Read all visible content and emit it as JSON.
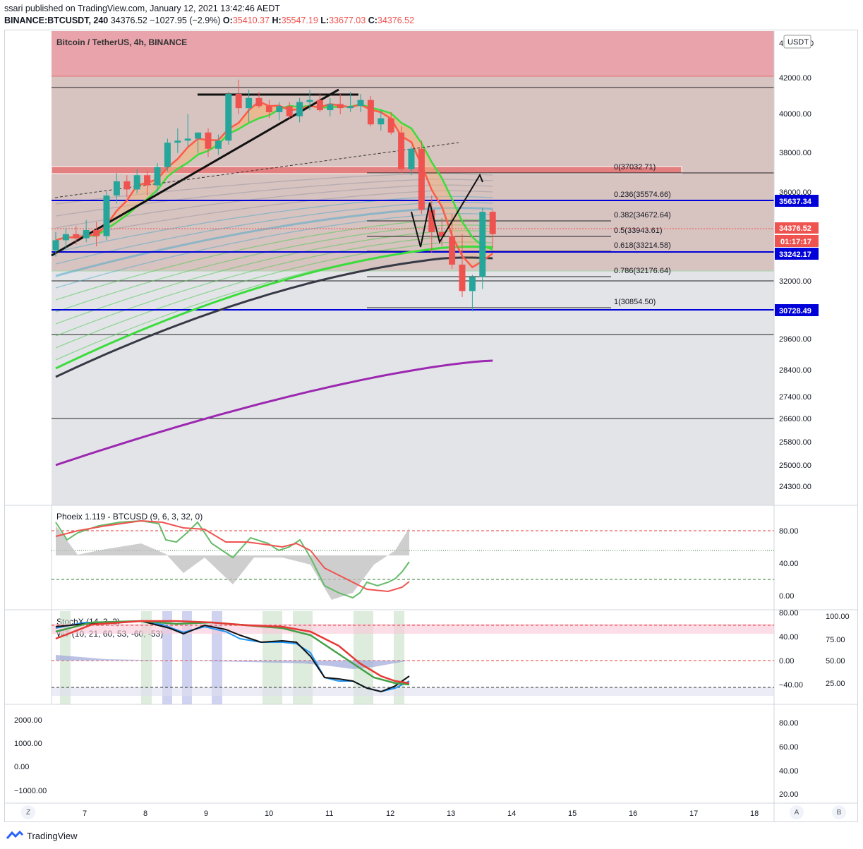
{
  "header": {
    "publish_line": "ssari published on TradingView.com, January 12, 2021 13:42:46 AEDT",
    "symbol": "BINANCE:BTCUSDT, 240",
    "last": "34376.52",
    "change": "−1027.95 (−2.9%)",
    "o_label": "O:",
    "o_val": "35410.37",
    "h_label": "H:",
    "h_val": "35547.19",
    "l_label": "L:",
    "l_val": "33677.03",
    "c_label": "C:",
    "c_val": "34376.52"
  },
  "main_title": "Bitcoin / TetherUS, 4h, BINANCE",
  "currency_button": "USDT",
  "price_axis_labels": [
    "42000.00",
    "40000.00",
    "38000.00",
    "36000.00",
    "32000.00",
    "29600.00",
    "28400.00",
    "27400.00",
    "26600.00",
    "25800.00",
    "25000.00",
    "24300.00"
  ],
  "price_axis_partial": "4",
  "price_axis_partial2": "0",
  "price_tags": {
    "level_upper": "35637.34",
    "last": "34376.52",
    "countdown": "01:17:17",
    "level_mid": "33242.17",
    "level_low": "30728.49"
  },
  "fib_labels": [
    "0(37032.71)",
    "0.236(35574.66)",
    "0.382(34672.64)",
    "0.5(33943.61)",
    "0.618(33214.58)",
    "0.786(32176.64)",
    "1(30854.50)"
  ],
  "phoenix": {
    "label": "Phoeix 1.119 - BTCUSD (9, 6, 3, 32, 0)",
    "axis": [
      "80.00",
      "40.00",
      "0.00"
    ]
  },
  "stoch": {
    "label1": "StochX (14, 3, 3)",
    "label2": "WT (10, 21, 60, 53, -60, -53)",
    "axis_left": [
      "80.00",
      "40.00",
      "0.00",
      "−40.00"
    ],
    "axis_right": [
      "100.00",
      "75.00",
      "50.00",
      "25.00"
    ]
  },
  "bottom_pane": {
    "axis_left": [
      "2000.00",
      "1000.00",
      "0.00",
      "−1000.00"
    ],
    "axis_right": [
      "80.00",
      "60.00",
      "40.00",
      "20.00"
    ]
  },
  "time_axis": [
    "7",
    "8",
    "9",
    "10",
    "11",
    "12",
    "13",
    "14",
    "15",
    "16",
    "17",
    "18"
  ],
  "time_buttons": {
    "left": "Z",
    "a": "A",
    "b": "B"
  },
  "footer": "TradingView",
  "colors": {
    "up": "#26a69a",
    "down": "#ef5350",
    "blue_level": "#0000d8",
    "purple_ma": "#9c27b0",
    "green_ma": "#4cd64c",
    "dark_ma": "#363a45",
    "red_ma": "#ff5a46"
  },
  "chart_data": {
    "type": "candlestick",
    "title": "Bitcoin / TetherUS, 4h, BINANCE",
    "x_ticks": [
      "7",
      "8",
      "9",
      "10",
      "11",
      "12",
      "13",
      "14",
      "15",
      "16",
      "17",
      "18"
    ],
    "candles": [
      {
        "o": 33500,
        "h": 34400,
        "l": 33200,
        "c": 34000
      },
      {
        "o": 34000,
        "h": 34600,
        "l": 33600,
        "c": 34300
      },
      {
        "o": 34300,
        "h": 34700,
        "l": 33800,
        "c": 34100
      },
      {
        "o": 34100,
        "h": 35000,
        "l": 33900,
        "c": 34500
      },
      {
        "o": 34500,
        "h": 34900,
        "l": 33700,
        "c": 34200
      },
      {
        "o": 34200,
        "h": 36400,
        "l": 34000,
        "c": 36200
      },
      {
        "o": 36200,
        "h": 37300,
        "l": 35800,
        "c": 36900
      },
      {
        "o": 36900,
        "h": 37200,
        "l": 36100,
        "c": 36500
      },
      {
        "o": 36500,
        "h": 37500,
        "l": 36300,
        "c": 37200
      },
      {
        "o": 37200,
        "h": 37400,
        "l": 36200,
        "c": 36700
      },
      {
        "o": 36700,
        "h": 37800,
        "l": 36400,
        "c": 37600
      },
      {
        "o": 37600,
        "h": 39000,
        "l": 37400,
        "c": 38800
      },
      {
        "o": 38800,
        "h": 39500,
        "l": 38300,
        "c": 38900
      },
      {
        "o": 38900,
        "h": 40200,
        "l": 38600,
        "c": 39000
      },
      {
        "o": 39000,
        "h": 39300,
        "l": 38300,
        "c": 39300
      },
      {
        "o": 39300,
        "h": 39500,
        "l": 38100,
        "c": 38500
      },
      {
        "o": 38500,
        "h": 39200,
        "l": 38200,
        "c": 38900
      },
      {
        "o": 38900,
        "h": 41300,
        "l": 38700,
        "c": 41200
      },
      {
        "o": 41200,
        "h": 41900,
        "l": 40200,
        "c": 40500
      },
      {
        "o": 40500,
        "h": 41400,
        "l": 39800,
        "c": 41000
      },
      {
        "o": 41000,
        "h": 41300,
        "l": 40500,
        "c": 40600
      },
      {
        "o": 40600,
        "h": 40900,
        "l": 40000,
        "c": 40300
      },
      {
        "o": 40300,
        "h": 40800,
        "l": 39900,
        "c": 40600
      },
      {
        "o": 40600,
        "h": 40800,
        "l": 40000,
        "c": 40100
      },
      {
        "o": 40100,
        "h": 41000,
        "l": 39800,
        "c": 40800
      },
      {
        "o": 40800,
        "h": 41400,
        "l": 40400,
        "c": 40900
      },
      {
        "o": 40900,
        "h": 41200,
        "l": 40300,
        "c": 40400
      },
      {
        "o": 40400,
        "h": 41000,
        "l": 40100,
        "c": 40700
      },
      {
        "o": 40700,
        "h": 41200,
        "l": 40200,
        "c": 40500
      },
      {
        "o": 40500,
        "h": 41300,
        "l": 40300,
        "c": 40600
      },
      {
        "o": 40600,
        "h": 41200,
        "l": 40300,
        "c": 40900
      },
      {
        "o": 40900,
        "h": 41100,
        "l": 39600,
        "c": 39700
      },
      {
        "o": 39700,
        "h": 40400,
        "l": 39400,
        "c": 40000
      },
      {
        "o": 40000,
        "h": 40300,
        "l": 39200,
        "c": 39300
      },
      {
        "o": 39300,
        "h": 39600,
        "l": 37300,
        "c": 37500
      },
      {
        "o": 37500,
        "h": 38600,
        "l": 37200,
        "c": 38500
      },
      {
        "o": 38500,
        "h": 38900,
        "l": 35300,
        "c": 35500
      },
      {
        "o": 35500,
        "h": 36200,
        "l": 33400,
        "c": 34400
      },
      {
        "o": 34400,
        "h": 35100,
        "l": 33700,
        "c": 34200
      },
      {
        "o": 34200,
        "h": 35300,
        "l": 32600,
        "c": 32800
      },
      {
        "o": 32800,
        "h": 34300,
        "l": 31200,
        "c": 31500
      },
      {
        "o": 31500,
        "h": 32300,
        "l": 30500,
        "c": 32200
      },
      {
        "o": 32200,
        "h": 35600,
        "l": 31600,
        "c": 35400
      },
      {
        "o": 35400,
        "h": 35500,
        "l": 33600,
        "c": 34300
      }
    ],
    "fib_levels": [
      {
        "ratio": "0",
        "price": 37032.71
      },
      {
        "ratio": "0.236",
        "price": 35574.66
      },
      {
        "ratio": "0.382",
        "price": 34672.64
      },
      {
        "ratio": "0.5",
        "price": 33943.61
      },
      {
        "ratio": "0.618",
        "price": 33214.58
      },
      {
        "ratio": "0.786",
        "price": 32176.64
      },
      {
        "ratio": "1",
        "price": 30854.5
      }
    ],
    "horizontal_levels": [
      35637.34,
      33242.17,
      30728.49
    ],
    "last_price": 34376.52
  }
}
